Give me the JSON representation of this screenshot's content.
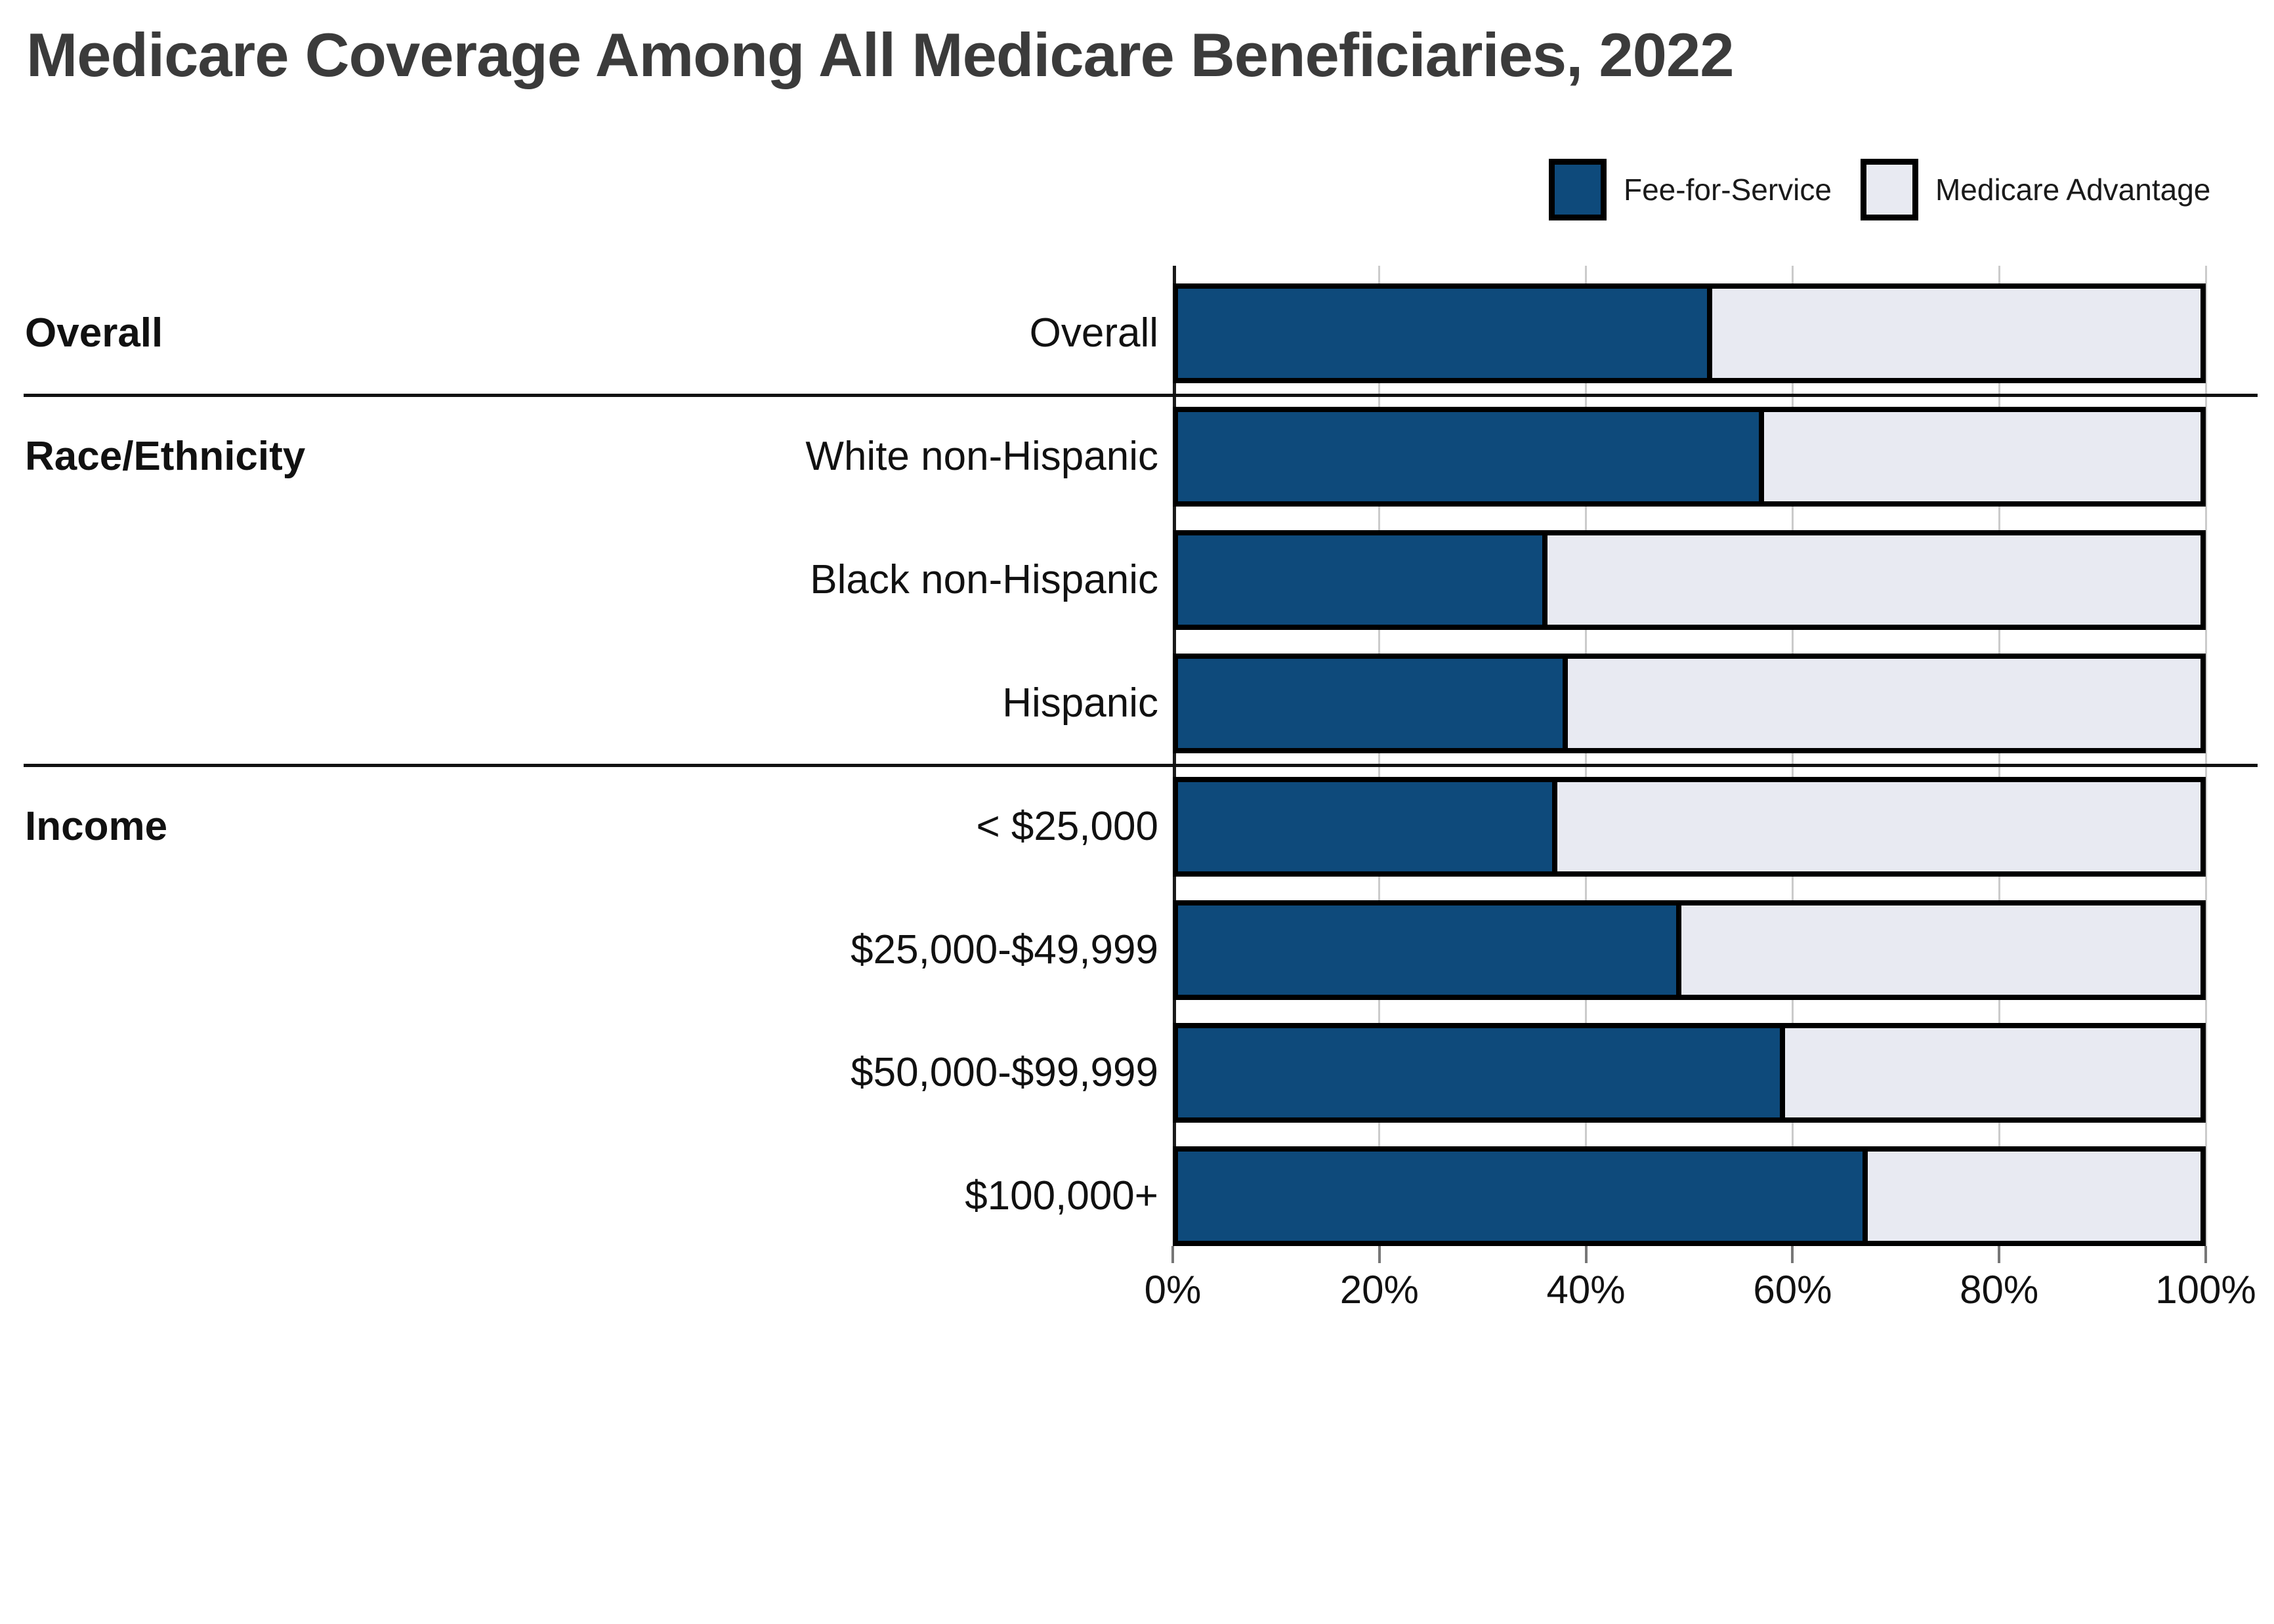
{
  "chart_data": {
    "type": "bar",
    "orientation": "horizontal-stacked",
    "title": "Medicare Coverage Among All Medicare Beneficiaries, 2022",
    "title_color": "#3b3b3b",
    "series": [
      {
        "name": "Fee-for-Service",
        "color": "#0e4a7b"
      },
      {
        "name": "Medicare Advantage",
        "color": "#e8eaf2"
      }
    ],
    "groups": [
      {
        "label": "Overall",
        "rows": [
          {
            "label": "Overall",
            "values": [
              52,
              48
            ]
          }
        ]
      },
      {
        "label": "Race/Ethnicity",
        "rows": [
          {
            "label": "White non-Hispanic",
            "values": [
              57,
              43
            ]
          },
          {
            "label": "Black non-Hispanic",
            "values": [
              36,
              64
            ]
          },
          {
            "label": "Hispanic",
            "values": [
              38,
              62
            ]
          }
        ]
      },
      {
        "label": "Income",
        "rows": [
          {
            "label": "< $25,000",
            "values": [
              37,
              63
            ]
          },
          {
            "label": "$25,000-$49,999",
            "values": [
              49,
              51
            ]
          },
          {
            "label": "$50,000-$99,999",
            "values": [
              59,
              41
            ]
          },
          {
            "label": "$100,000+",
            "values": [
              67,
              33
            ]
          }
        ]
      }
    ],
    "x_ticks": [
      "0%",
      "20%",
      "40%",
      "60%",
      "80%",
      "100%"
    ],
    "xlim": [
      0,
      100
    ],
    "grid": true,
    "legend_position": "top-right",
    "bar_border_color": "#000000",
    "gridline_color": "#cbcbcb",
    "separator_color": "#111111",
    "axis_line_color": "#1a1a1a"
  }
}
